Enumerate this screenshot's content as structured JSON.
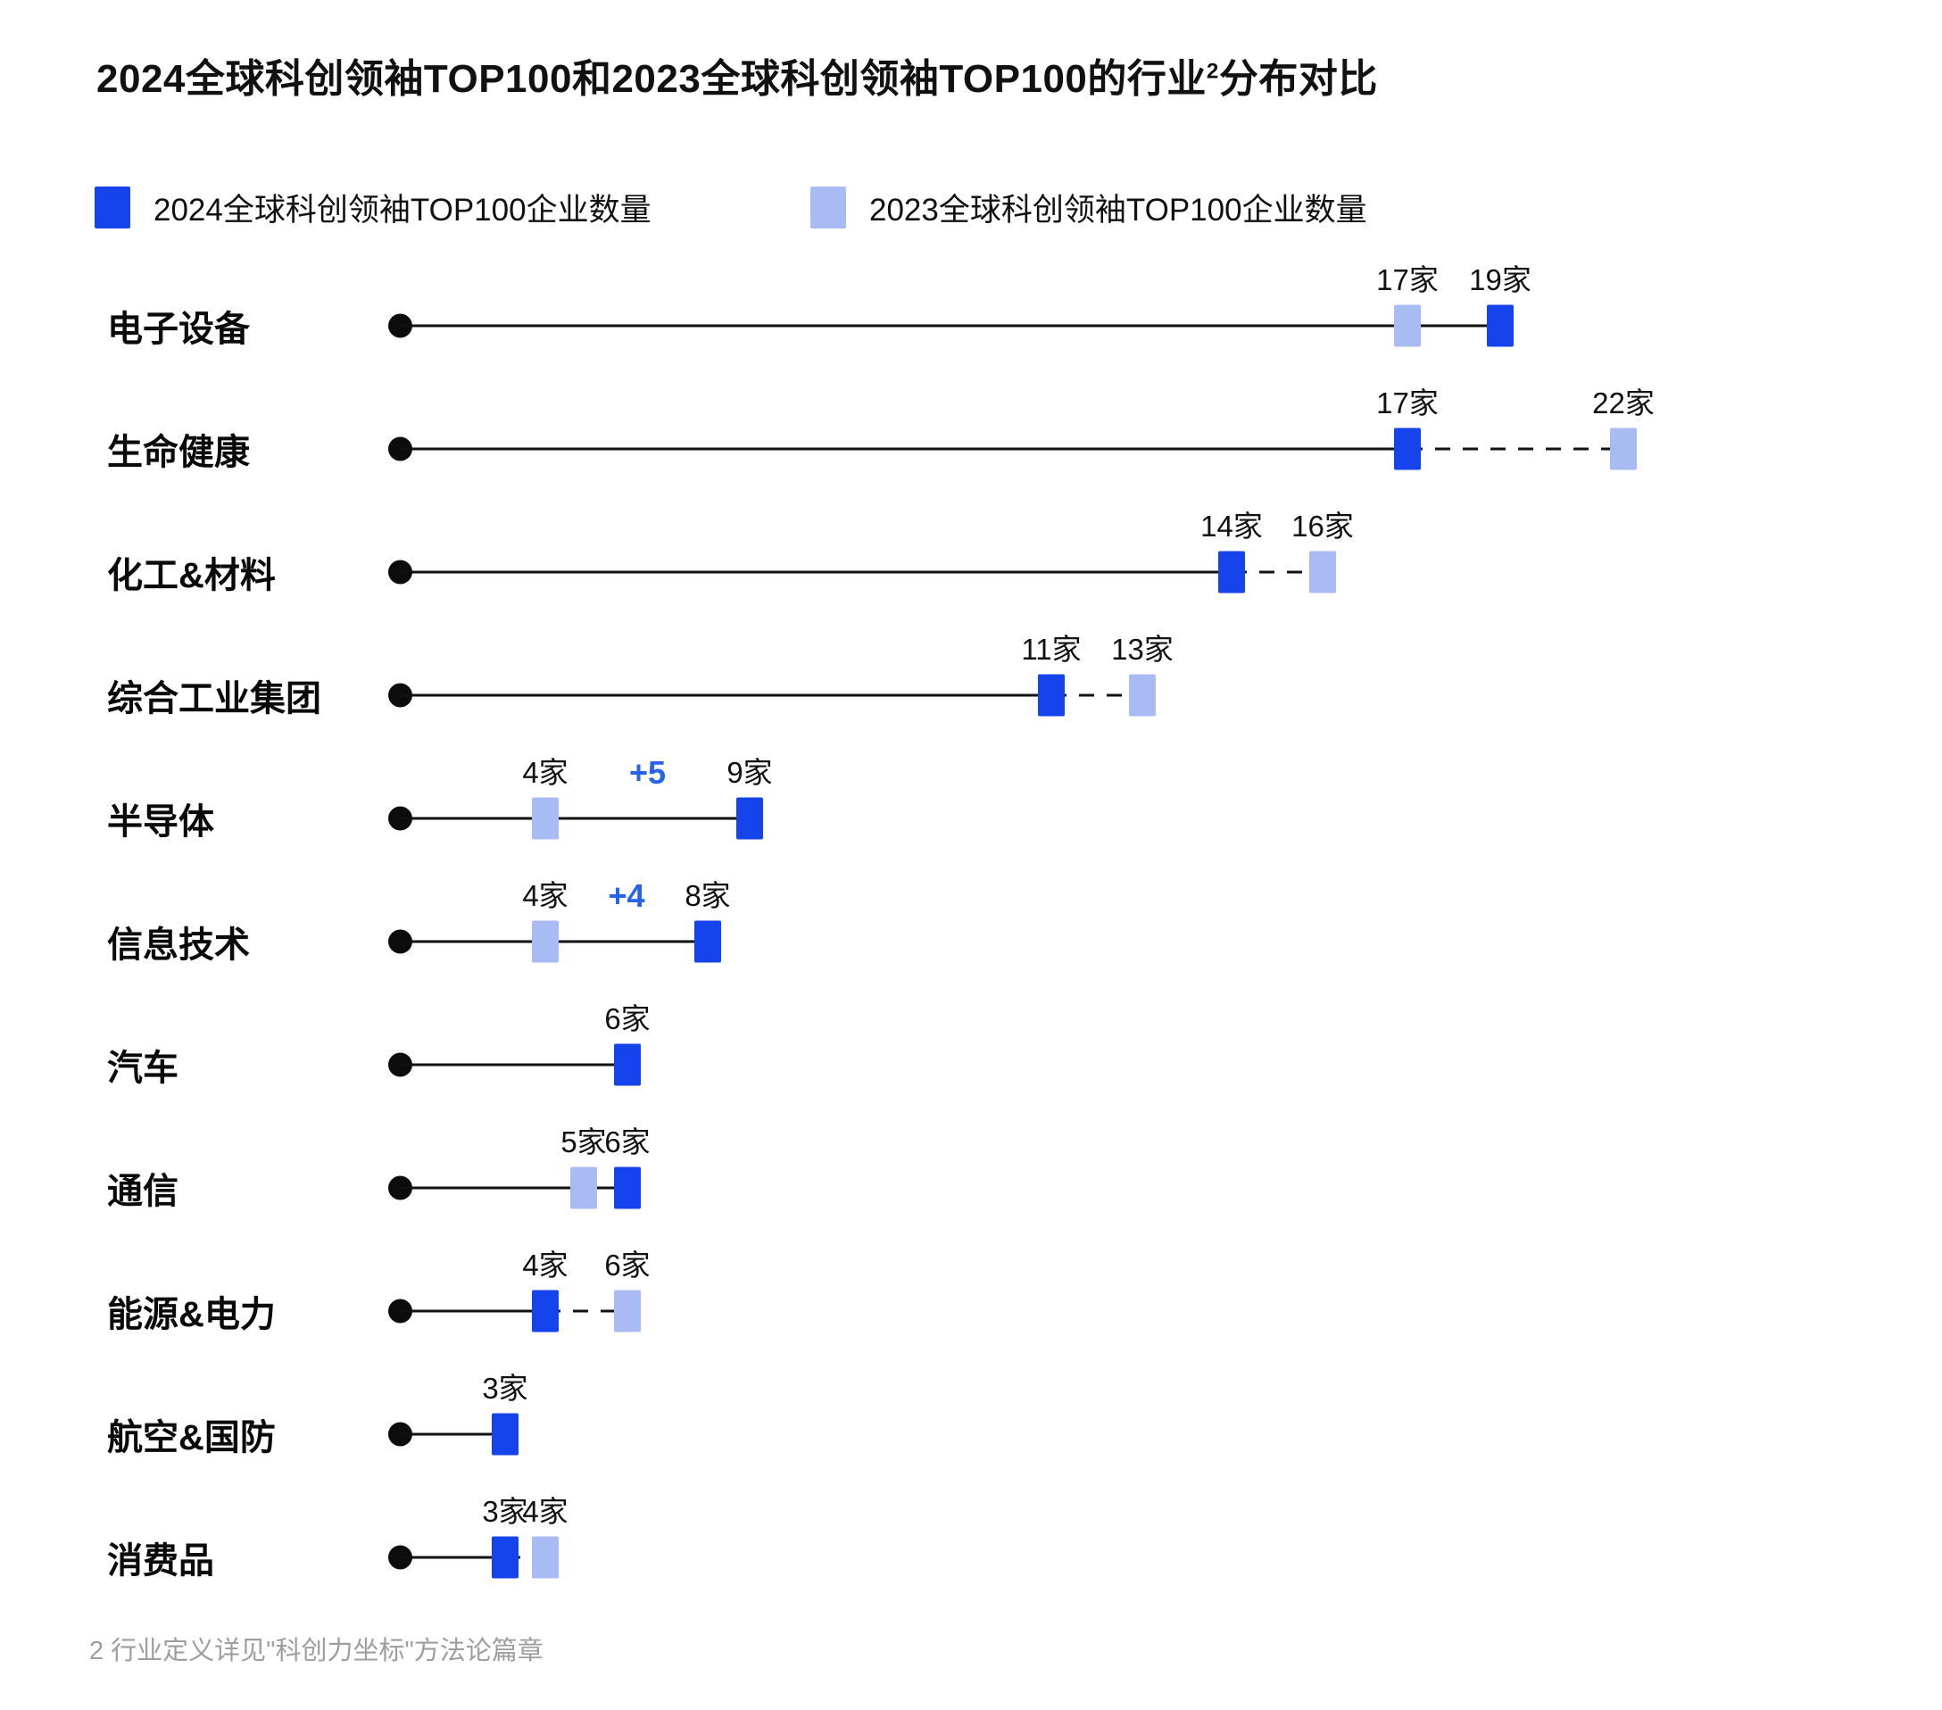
{
  "title": {
    "prefix": "2024全球科创领袖TOP100和2023全球科创领袖TOP100的行业",
    "superscript": "2",
    "suffix": "分布对比"
  },
  "legend": [
    {
      "label": "2024全球科创领袖TOP100企业数量",
      "color": "#1544ed"
    },
    {
      "label": "2023全球科创领袖TOP100企业数量",
      "color": "#a9bbf3"
    }
  ],
  "footnote": "2 行业定义详见\"科创力坐标\"方法论篇章",
  "colors": {
    "series_2024": "#1544ed",
    "series_2023": "#a9bbf3",
    "line": "#111111",
    "annotation": "#2563eb",
    "footnote_text": "#9e9e9e"
  },
  "chart_data": {
    "type": "scatter",
    "subtype": "dumbbell-lollipop",
    "title": "2024全球科创领袖TOP100和2023全球科创领袖TOP100的行业2分布对比",
    "value_suffix": "家",
    "categories": [
      "电子设备",
      "生命健康",
      "化工&材料",
      "综合工业集团",
      "半导体",
      "信息技术",
      "汽车",
      "通信",
      "能源&电力",
      "航空&国防",
      "消费品"
    ],
    "series": [
      {
        "name": "2024全球科创领袖TOP100企业数量",
        "values": [
          19,
          17,
          14,
          11,
          9,
          8,
          6,
          6,
          4,
          3,
          3
        ]
      },
      {
        "name": "2023全球科创领袖TOP100企业数量",
        "values": [
          17,
          22,
          16,
          13,
          4,
          4,
          null,
          5,
          6,
          null,
          4
        ]
      }
    ],
    "annotations": [
      {
        "category": "半导体",
        "text": "+5"
      },
      {
        "category": "信息技术",
        "text": "+4"
      }
    ],
    "line_style_rule": "solid line from origin dot to 2024 marker; dashed segment between markers when 2024 < 2023",
    "legend_position": "top",
    "grid": false,
    "layout": {
      "dot_x": 448,
      "category_label_x": 120,
      "row_start_y": 365,
      "row_spacing": 138,
      "x_map": {
        "3": 566,
        "4": 611,
        "5": 654,
        "6": 703,
        "8": 793,
        "9": 840,
        "11": 1178,
        "13": 1280,
        "14": 1380,
        "16": 1482,
        "17": 1577,
        "19": 1681,
        "22": 1819
      }
    }
  }
}
